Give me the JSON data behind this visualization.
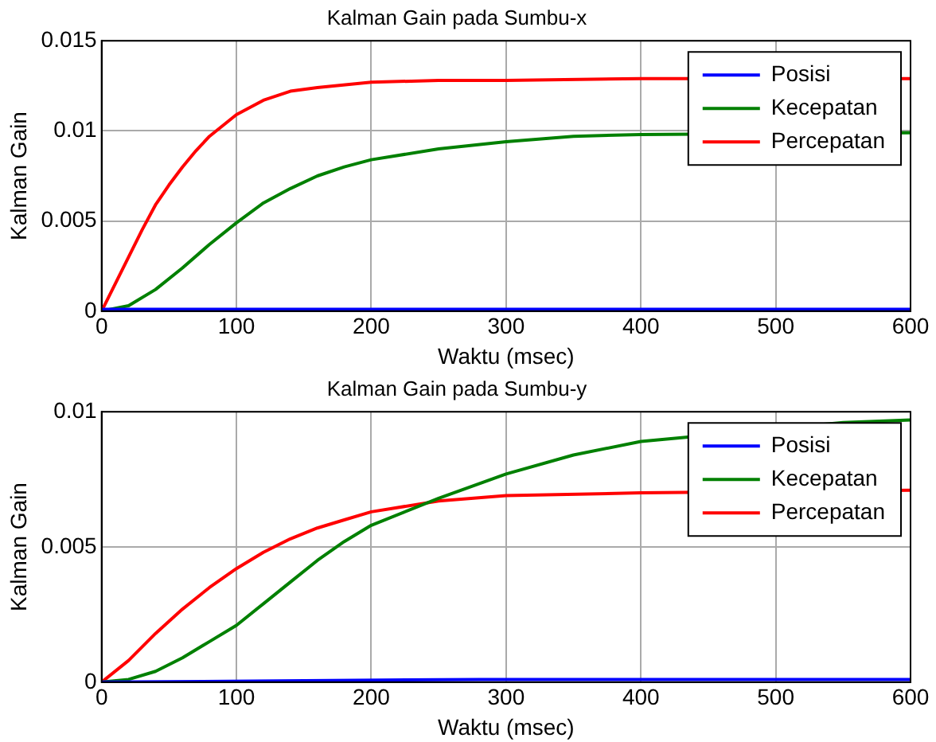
{
  "chart_data": [
    {
      "type": "line",
      "title": "Kalman Gain pada Sumbu-x",
      "xlabel": "Waktu (msec)",
      "ylabel": "Kalman Gain",
      "xlim": [
        0,
        600
      ],
      "xticks": [
        0,
        100,
        200,
        300,
        400,
        500,
        600
      ],
      "ylim": [
        0,
        0.015
      ],
      "yticks": [
        0,
        0.005,
        0.01,
        0.015
      ],
      "grid": true,
      "legend": "top right",
      "series": [
        {
          "name": "Posisi",
          "color": "#0000ff",
          "x": [
            0,
            600
          ],
          "values": [
            0.0001,
            0.0001
          ]
        },
        {
          "name": "Kecepatan",
          "color": "#008000",
          "x": [
            0,
            20,
            40,
            60,
            80,
            100,
            120,
            140,
            160,
            180,
            200,
            250,
            300,
            350,
            400,
            500,
            600
          ],
          "values": [
            0,
            0.0003,
            0.0012,
            0.0024,
            0.0037,
            0.0049,
            0.006,
            0.0068,
            0.0075,
            0.008,
            0.0084,
            0.009,
            0.0094,
            0.0097,
            0.0098,
            null,
            0.0099
          ]
        },
        {
          "name": "Percepatan",
          "color": "#ff0000",
          "x": [
            0,
            10,
            20,
            30,
            40,
            50,
            60,
            70,
            80,
            100,
            120,
            140,
            160,
            200,
            250,
            300,
            400,
            600
          ],
          "values": [
            0,
            0.0015,
            0.003,
            0.0045,
            0.0059,
            0.007,
            0.008,
            0.0089,
            0.0097,
            0.0109,
            0.0117,
            0.0122,
            0.0124,
            0.0127,
            0.0128,
            0.0128,
            0.0129,
            0.0129
          ]
        }
      ]
    },
    {
      "type": "line",
      "title": "Kalman Gain pada Sumbu-y",
      "xlabel": "Waktu (msec)",
      "ylabel": "Kalman Gain",
      "xlim": [
        0,
        600
      ],
      "xticks": [
        0,
        100,
        200,
        300,
        400,
        500,
        600
      ],
      "ylim": [
        0,
        0.01
      ],
      "yticks": [
        0,
        0.005,
        0.01
      ],
      "grid": true,
      "legend": "top right",
      "series": [
        {
          "name": "Posisi",
          "color": "#0000ff",
          "x": [
            0,
            280,
            600
          ],
          "values": [
            0,
            0.0001,
            0.0001
          ]
        },
        {
          "name": "Kecepatan",
          "color": "#008000",
          "x": [
            0,
            20,
            40,
            60,
            80,
            100,
            120,
            140,
            160,
            180,
            200,
            250,
            300,
            350,
            400,
            450,
            500,
            550,
            600
          ],
          "values": [
            0,
            0.0001,
            0.0004,
            0.0009,
            0.0015,
            0.0021,
            0.0029,
            0.0037,
            0.0045,
            0.0052,
            0.0058,
            0.0068,
            0.0077,
            0.0084,
            0.0089,
            null,
            null,
            0.0096,
            0.0097
          ]
        },
        {
          "name": "Percepatan",
          "color": "#ff0000",
          "x": [
            0,
            20,
            40,
            60,
            80,
            100,
            120,
            140,
            160,
            180,
            200,
            250,
            300,
            400,
            600
          ],
          "values": [
            0,
            0.0008,
            0.0018,
            0.0027,
            0.0035,
            0.0042,
            0.0048,
            0.0053,
            0.0057,
            0.006,
            0.0063,
            0.0067,
            0.0069,
            0.007,
            0.0071
          ]
        }
      ]
    }
  ]
}
